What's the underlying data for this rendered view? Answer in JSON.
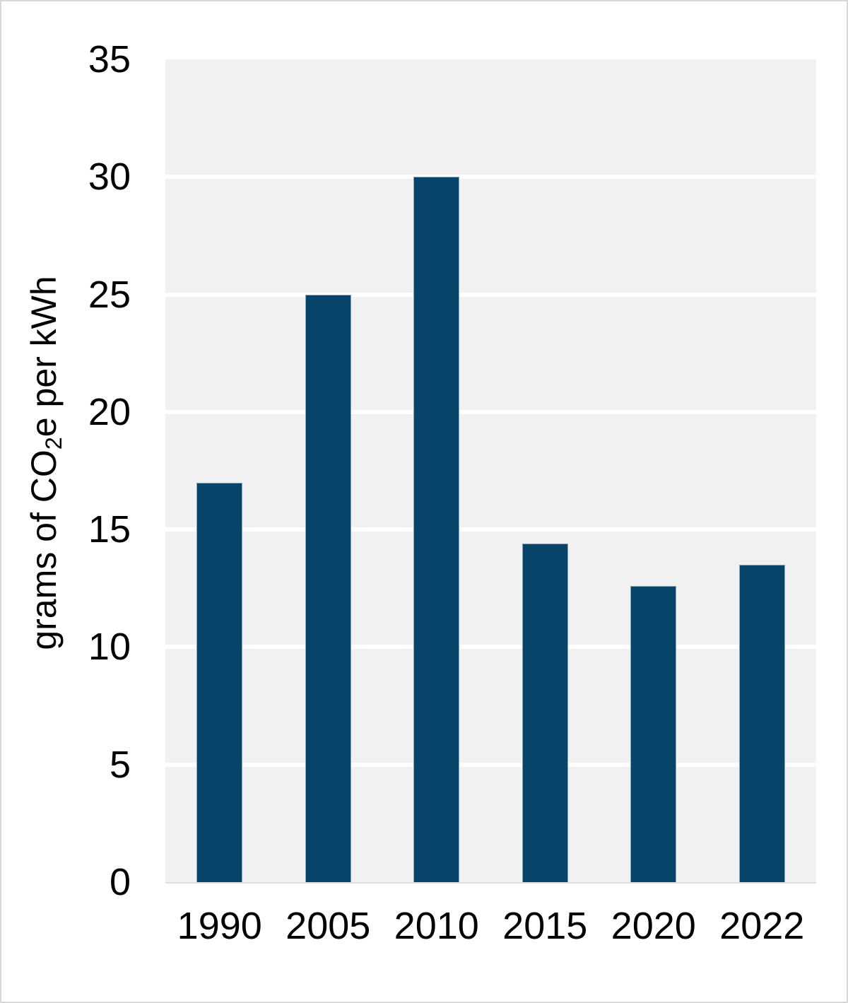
{
  "chart_data": {
    "type": "bar",
    "categories": [
      "1990",
      "2005",
      "2010",
      "2015",
      "2020",
      "2022"
    ],
    "values": [
      17,
      25,
      30,
      14.4,
      12.6,
      13.5
    ],
    "series": [
      {
        "name": "grams of CO2e per kWh",
        "values": [
          17,
          25,
          30,
          14.4,
          12.6,
          13.5
        ]
      }
    ],
    "title": "",
    "xlabel": "",
    "ylabel": "grams of CO2e per kWh",
    "ylabel_parts": {
      "pre": "grams of CO",
      "sub": "2",
      "post": "e per kWh"
    },
    "ylim": [
      0,
      35
    ],
    "yticks": [
      0,
      5,
      10,
      15,
      20,
      25,
      30,
      35
    ],
    "grid": "horizontal white gridlines on light gray panel",
    "legend": "none"
  },
  "colors": {
    "bar_fill": "#084469",
    "bar_border": "#84a7bd",
    "panel_background": "#f1f1f1",
    "gridline": "#ffffff",
    "axis_baseline": "#dedede",
    "text": "#000000",
    "canvas_border": "#d9d9d9"
  }
}
